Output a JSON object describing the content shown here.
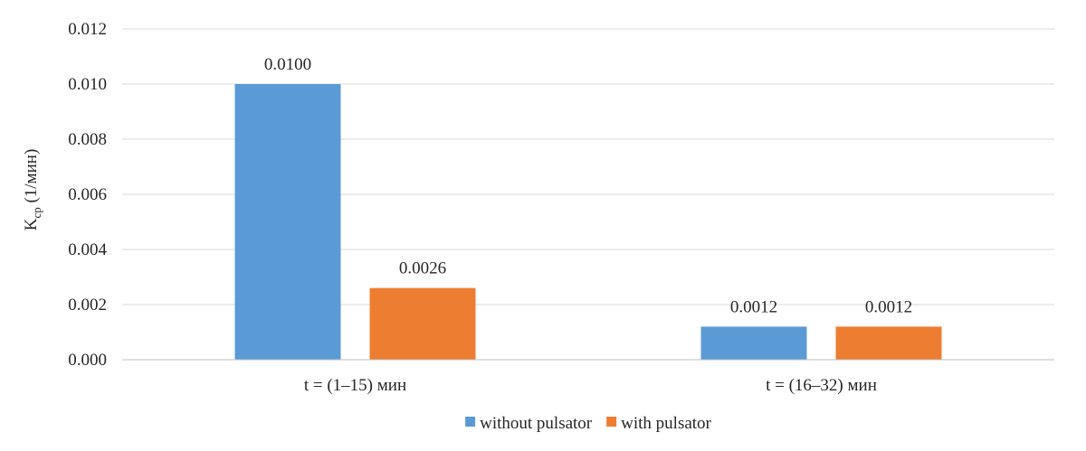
{
  "chart_data": {
    "type": "bar",
    "categories": [
      "t = (1–15) мин",
      "t = (16–32) мин"
    ],
    "series": [
      {
        "name": "without pulsator",
        "values": [
          0.01,
          0.0012
        ],
        "labels": [
          "0.0100",
          "0.0012"
        ],
        "color": "#5b9bd5"
      },
      {
        "name": "with pulsator",
        "values": [
          0.0026,
          0.0012
        ],
        "labels": [
          "0.0026",
          "0.0012"
        ],
        "color": "#ed7d31"
      }
    ],
    "ylabel_main": "K",
    "ylabel_sub": "ср",
    "ylabel_rest": " (1/мин)",
    "ylim": [
      0,
      0.012
    ],
    "yticks": [
      "0.000",
      "0.002",
      "0.004",
      "0.006",
      "0.008",
      "0.010",
      "0.012"
    ],
    "ytick_values": [
      0,
      0.002,
      0.004,
      0.006,
      0.008,
      0.01,
      0.012
    ],
    "grid": true,
    "legend_position": "bottom"
  }
}
